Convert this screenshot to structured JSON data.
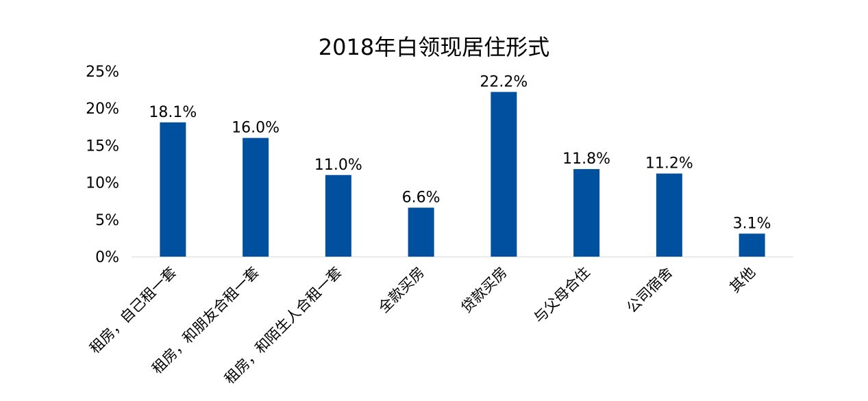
{
  "chart_data": {
    "type": "bar",
    "title": "2018年白领现居住形式",
    "categories": [
      "租房，自己租一套",
      "租房，和朋友合租一套",
      "租房，和陌生人合租一套",
      "全款买房",
      "贷款买房",
      "与父母合住",
      "公司宿舍",
      "其他"
    ],
    "values": [
      18.1,
      16.0,
      11.0,
      6.6,
      22.2,
      11.8,
      11.2,
      3.1
    ],
    "value_labels": [
      "18.1%",
      "16.0%",
      "11.0%",
      "6.6%",
      "22.2%",
      "11.8%",
      "11.2%",
      "3.1%"
    ],
    "y_ticks": [
      0,
      5,
      10,
      15,
      20,
      25
    ],
    "y_tick_labels": [
      "0%",
      "5%",
      "10%",
      "15%",
      "20%",
      "25%"
    ],
    "ylim": [
      0,
      25
    ],
    "xlabel": "",
    "ylabel": "",
    "grid": false,
    "legend": "none",
    "bar_color": "#0050A0",
    "axis_color": "#D9D9D9"
  }
}
